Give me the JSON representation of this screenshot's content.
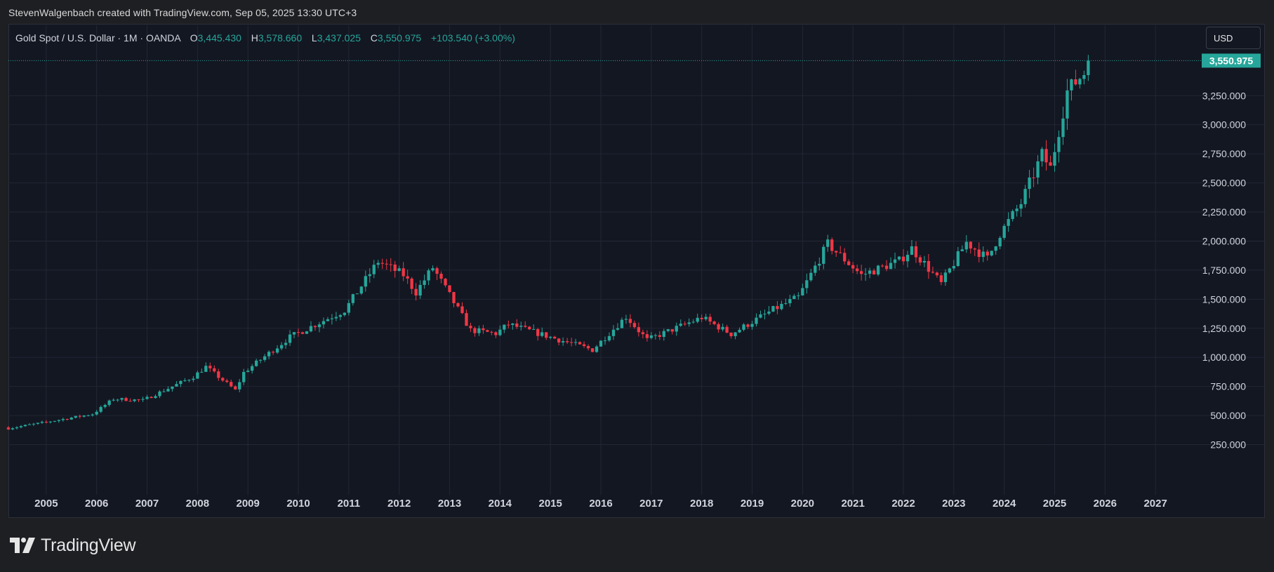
{
  "header": {
    "credit": "StevenWalgenbach created with TradingView.com, Sep 05, 2025 13:30 UTC+3"
  },
  "legend": {
    "symbol": "Gold Spot / U.S. Dollar · 1M · OANDA",
    "open_label": "O",
    "open": "3,445.430",
    "high_label": "H",
    "high": "3,578.660",
    "low_label": "L",
    "low": "3,437.025",
    "close_label": "C",
    "close": "3,550.975",
    "change": "+103.540 (+3.00%)"
  },
  "currency_button": "USD",
  "footer": {
    "brand": "TradingView"
  },
  "colors": {
    "up": "#26a69a",
    "down": "#f23645",
    "background": "#131722",
    "grid": "#232734",
    "text": "#d1d4dc"
  },
  "chart_data": {
    "type": "candlestick",
    "symbol": "XAUUSD",
    "interval": "1M",
    "y_ticks": [
      "250.000",
      "500.000",
      "750.000",
      "1,000.000",
      "1,250.000",
      "1,500.000",
      "1,750.000",
      "2,000.000",
      "2,250.000",
      "2,500.000",
      "2,750.000",
      "3,000.000",
      "3,250.000"
    ],
    "x_ticks": [
      "2005",
      "2006",
      "2007",
      "2008",
      "2009",
      "2010",
      "2011",
      "2012",
      "2013",
      "2014",
      "2015",
      "2016",
      "2017",
      "2018",
      "2019",
      "2020",
      "2021",
      "2022",
      "2023",
      "2024",
      "2025",
      "2026",
      "2027"
    ],
    "ylim": [
      0,
      3650
    ],
    "xlim": [
      "2004-04",
      "2027-12"
    ],
    "last_price_label": "3,550.975",
    "last_price": 3550.975,
    "grid": true,
    "closes": [
      {
        "t": "2004-04",
        "c": 390
      },
      {
        "t": "2004-12",
        "c": 438
      },
      {
        "t": "2005-12",
        "c": 513
      },
      {
        "t": "2006-05",
        "c": 643
      },
      {
        "t": "2006-12",
        "c": 632
      },
      {
        "t": "2007-12",
        "c": 834
      },
      {
        "t": "2008-03",
        "c": 920
      },
      {
        "t": "2008-10",
        "c": 718
      },
      {
        "t": "2008-12",
        "c": 870
      },
      {
        "t": "2009-11",
        "c": 1175
      },
      {
        "t": "2010-12",
        "c": 1405
      },
      {
        "t": "2011-08",
        "c": 1825
      },
      {
        "t": "2012-02",
        "c": 1710
      },
      {
        "t": "2012-05",
        "c": 1560
      },
      {
        "t": "2012-09",
        "c": 1772
      },
      {
        "t": "2013-06",
        "c": 1234
      },
      {
        "t": "2013-12",
        "c": 1205
      },
      {
        "t": "2014-03",
        "c": 1285
      },
      {
        "t": "2014-12",
        "c": 1185
      },
      {
        "t": "2015-11",
        "c": 1065
      },
      {
        "t": "2016-07",
        "c": 1351
      },
      {
        "t": "2016-12",
        "c": 1150
      },
      {
        "t": "2018-01",
        "c": 1343
      },
      {
        "t": "2018-08",
        "c": 1201
      },
      {
        "t": "2019-06",
        "c": 1410
      },
      {
        "t": "2019-12",
        "c": 1517
      },
      {
        "t": "2020-07",
        "c": 1975
      },
      {
        "t": "2021-03",
        "c": 1708
      },
      {
        "t": "2021-12",
        "c": 1829
      },
      {
        "t": "2022-03",
        "c": 1937
      },
      {
        "t": "2022-10",
        "c": 1633
      },
      {
        "t": "2023-04",
        "c": 1990
      },
      {
        "t": "2023-09",
        "c": 1848
      },
      {
        "t": "2023-12",
        "c": 2063
      },
      {
        "t": "2024-05",
        "c": 2327
      },
      {
        "t": "2024-10",
        "c": 2743
      },
      {
        "t": "2024-12",
        "c": 2625
      },
      {
        "t": "2025-04",
        "c": 3288
      },
      {
        "t": "2025-08",
        "c": 3447
      },
      {
        "t": "2025-09",
        "c": 3550.975
      }
    ]
  }
}
